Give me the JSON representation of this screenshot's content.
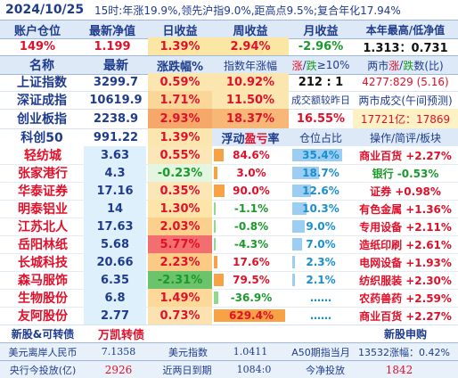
{
  "title_bar": {
    "date": "2024/10/25",
    "summary": "15时:年涨19.9%,领先沪指9.0%,距高点9.5%;复合年化17.94%"
  },
  "account_header": [
    "账户仓位",
    "最新净值",
    "日收益",
    "周收益",
    "月收益",
    "本年最高/低净值"
  ],
  "account_values": {
    "position": "149%",
    "nav": "1.199",
    "daily": "1.39%",
    "weekly": "2.94%",
    "monthly": "-2.96%",
    "hi_lo": "1.313：0.731"
  },
  "index_header": {
    "name": "名称",
    "latest": "最新",
    "change": "涨跌幅%",
    "year_change": "指数年涨幅",
    "up_down_prefix": "涨",
    "up_down_sep": "/",
    "up_down_mid": "跌",
    "up_down_suffix": "≥10%",
    "breadth_prefix": "两市",
    "breadth_up": "涨",
    "breadth_sep": "/",
    "breadth_down": "跌",
    "breadth_suffix": "数(比)"
  },
  "indices": [
    {
      "name": "上证指数",
      "latest": "3299.7",
      "change": "0.59%",
      "c3": "10.92%",
      "c4": "212 : 1",
      "c5": "4277:829 (5.16)"
    },
    {
      "name": "深证成指",
      "latest": "10619.9",
      "change": "1.71%",
      "c3": "11.50%",
      "c4": "成交额较昨日",
      "c5": "两市成交(午间预测)"
    },
    {
      "name": "创业板指",
      "latest": "2238.9",
      "change": "2.93%",
      "c3": "18.37%",
      "c4": "16.55%",
      "c5": "17721亿：17869"
    },
    {
      "name": "科创50",
      "latest": "991.22",
      "change": "1.39%",
      "c3": "浮动",
      "c3b": "盈亏",
      "c3c": "率",
      "c4": "仓位占比",
      "c5": "操作/简评/板块"
    }
  ],
  "holdings": [
    {
      "name": "轻纺城",
      "price": "3.63",
      "change": "0.55%",
      "pnl": "84.6%",
      "weight": "35.4%",
      "note": "商业百货 +2.27%",
      "pnl_level": 0.13
    },
    {
      "name": "张家港行",
      "price": "4.3",
      "change": "-0.23%",
      "pnl": "3.0%",
      "weight": "18.7%",
      "note": "银行 -0.53%",
      "pnl_level": 0.05
    },
    {
      "name": "华泰证券",
      "price": "17.16",
      "change": "0.35%",
      "pnl": "90.0%",
      "weight": "12.6%",
      "note": "证券 +0.98%",
      "pnl_level": 0.14
    },
    {
      "name": "明泰铝业",
      "price": "14",
      "change": "1.30%",
      "pnl": "-1.1%",
      "weight": "10.3%",
      "note": "有色金属 +1.36%",
      "pnl_level": 0.02
    },
    {
      "name": "江苏北人",
      "price": "17.63",
      "change": "2.03%",
      "pnl": "-0.8%",
      "weight": "9.0%",
      "note": "专用设备 +2.11%",
      "pnl_level": 0.02
    },
    {
      "name": "岳阳林纸",
      "price": "5.68",
      "change": "5.77%",
      "pnl": "-4.3%",
      "weight": "7.0%",
      "note": "造纸印刷 +2.61%",
      "pnl_level": 0.02
    },
    {
      "name": "长城科技",
      "price": "20.66",
      "change": "2.23%",
      "pnl": "17.6%",
      "weight": "2.3%",
      "note": "电网设备 +1.93%",
      "pnl_level": 0.05
    },
    {
      "name": "森马服饰",
      "price": "6.35",
      "change": "-2.31%",
      "pnl": "79.5%",
      "weight": "2.1%",
      "note": "纺织服装 +2.30%",
      "pnl_level": 0.13
    },
    {
      "name": "生物股份",
      "price": "6.8",
      "change": "1.49%",
      "pnl": "-36.9%",
      "weight": "……",
      "note": "农药兽药 +2.59%",
      "pnl_level": 0.06
    },
    {
      "name": "友阿股份",
      "price": "2.77",
      "change": "0.73%",
      "pnl": "629.4%",
      "weight": "……",
      "note": "商业百货 +2.27%",
      "pnl_level": 0.95
    }
  ],
  "new_shares": {
    "label": "新股&可转债",
    "value": "万凯转债",
    "apply": "新股申购"
  },
  "footer1": {
    "usd_cnh_label": "美元离岸人民币",
    "usd_cnh": "7.1358",
    "dxy_label": "美元指数",
    "dxy": "1.0411",
    "a50_label": "A50期指当月",
    "a50": "13532涨幅：0.42%"
  },
  "footer2": {
    "pboc_label": "央行今投放(亿)",
    "pboc": "2926",
    "maturity_label": "近两日到期",
    "maturity": "1084:0",
    "net_label": "今净投放",
    "net": "1842"
  },
  "colors": {
    "navy": "#1f3c8c",
    "red": "#e0102a",
    "green": "#1a9a2a",
    "header_bg": "#dde9f7",
    "bar_orange": "#f6a245",
    "bar_green": "#7ed070",
    "bar_blue": "#6aaeea",
    "name_blue": "#4aa3f0"
  }
}
